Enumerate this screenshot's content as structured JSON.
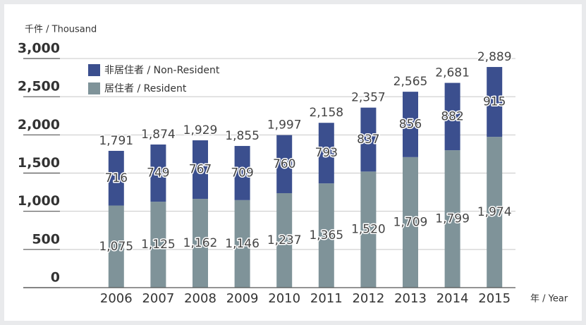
{
  "chart_data": {
    "type": "stacked_bar",
    "y_unit_label": "千件 / Thousand",
    "x_unit_label": "年 / Year",
    "categories": [
      "2006",
      "2007",
      "2008",
      "2009",
      "2010",
      "2011",
      "2012",
      "2013",
      "2014",
      "2015"
    ],
    "series": [
      {
        "name": "居住者 / Resident",
        "color": "#7f9399",
        "values": [
          1075,
          1125,
          1162,
          1146,
          1237,
          1365,
          1520,
          1709,
          1799,
          1974
        ],
        "value_labels": [
          "1,075",
          "1,125",
          "1,162",
          "1,146",
          "1,237",
          "1,365",
          "1,520",
          "1,709",
          "1,799",
          "1,974"
        ]
      },
      {
        "name": "非居住者 / Non-Resident",
        "color": "#3b4f8e",
        "values": [
          716,
          749,
          767,
          709,
          760,
          793,
          837,
          856,
          882,
          915
        ]
      }
    ],
    "total_labels": [
      "1,791",
      "1,874",
      "1,929",
      "1,855",
      "1,997",
      "2,158",
      "2,357",
      "2,565",
      "2,681",
      "2,889"
    ],
    "ylim": [
      0,
      3000
    ],
    "yticks": [
      0,
      500,
      {
        "value": 1000,
        "label": "1,000"
      },
      {
        "value": 1500,
        "label": "1,500"
      },
      {
        "value": 2000,
        "label": "2,000"
      },
      {
        "value": 2500,
        "label": "2,500"
      },
      {
        "value": 3000,
        "label": "3,000"
      }
    ],
    "grid": true
  }
}
